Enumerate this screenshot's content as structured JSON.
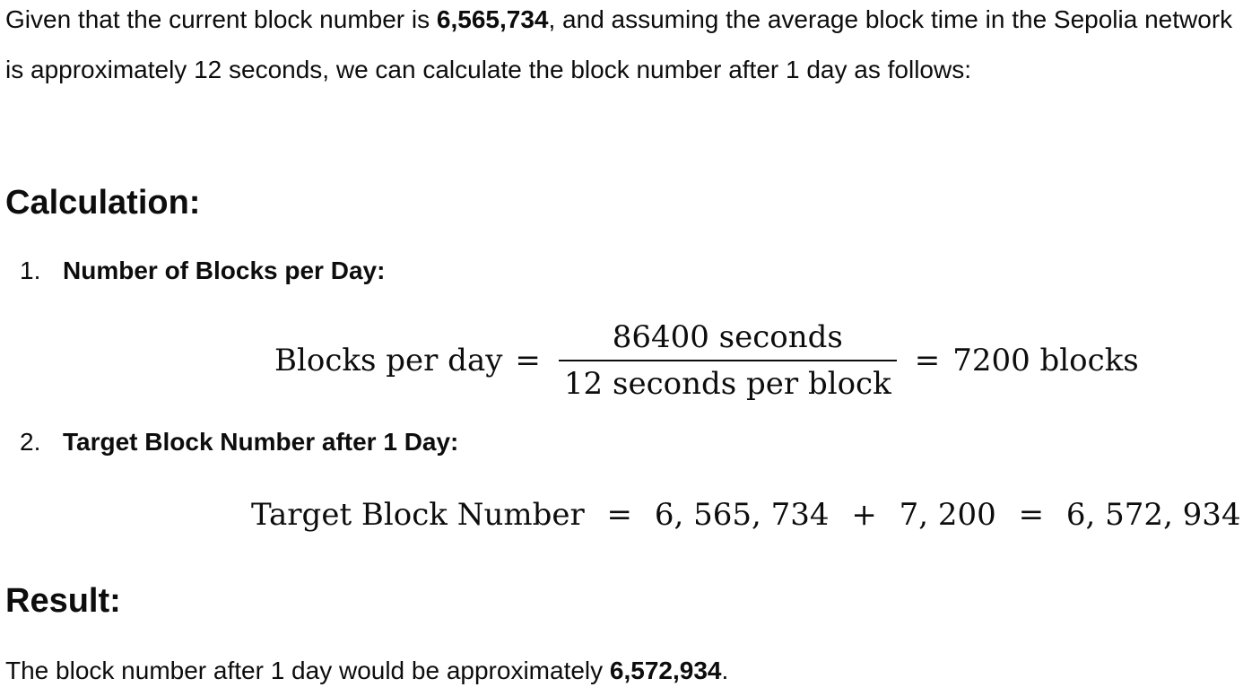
{
  "intro": {
    "text_before": "Given that the current block number is ",
    "current_block": "6,565,734",
    "text_after": ", and assuming the average block time in the Sepolia network is approximately 12 seconds, we can calculate the block number after 1 day as follows:"
  },
  "calculation": {
    "heading": "Calculation:",
    "items": [
      {
        "number": "1.",
        "title": "Number of Blocks per Day:",
        "equation": {
          "lhs": "Blocks per day",
          "eq1": "=",
          "numerator": "86400 seconds",
          "denominator": "12 seconds per block",
          "eq2": "=",
          "rhs": "7200 blocks"
        }
      },
      {
        "number": "2.",
        "title": "Target Block Number after 1 Day:",
        "equation": {
          "lhs": "Target Block Number",
          "eq1": "=",
          "term1": "6, 565, 734",
          "plus": "+",
          "term2": "7, 200",
          "eq2": "=",
          "rhs": "6, 572, 934"
        }
      }
    ]
  },
  "result": {
    "heading": "Result:",
    "text_before": "The block number after 1 day would be approximately ",
    "value": "6,572,934",
    "text_after": "."
  }
}
